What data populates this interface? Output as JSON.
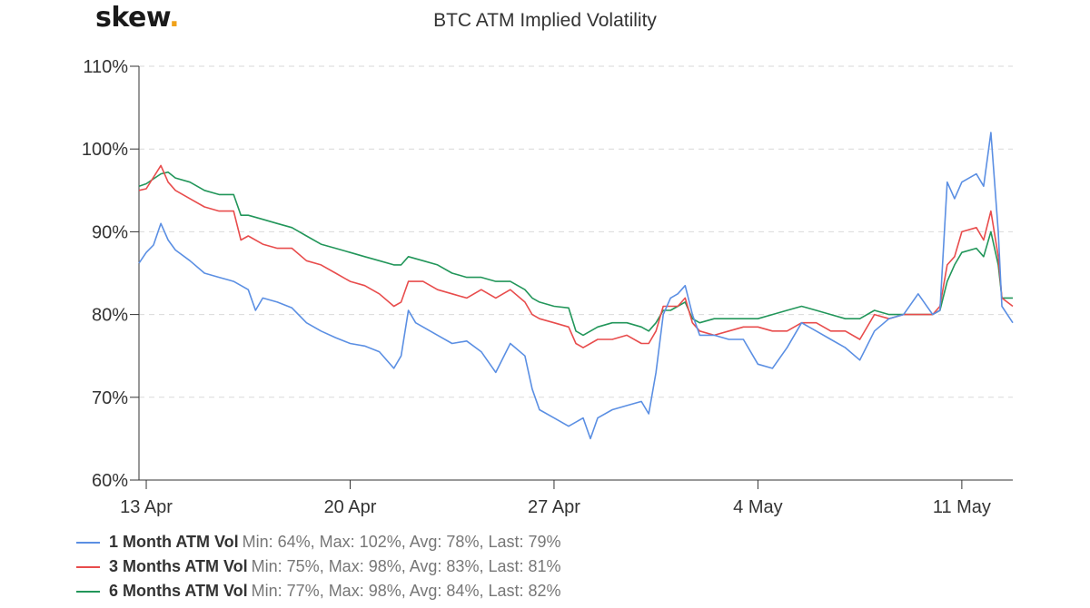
{
  "logo": {
    "text": "skew",
    "dot": "."
  },
  "chart_data": {
    "type": "line",
    "title": "BTC ATM Implied Volatility",
    "xlabel": "",
    "ylabel": "",
    "ylim": [
      60,
      110
    ],
    "y_ticks": [
      60,
      70,
      80,
      90,
      100,
      110
    ],
    "y_tick_labels": [
      "60%",
      "70%",
      "80%",
      "90%",
      "100%",
      "110%"
    ],
    "x_range": [
      "2020-04-12T18:00",
      "2020-05-12T18:00"
    ],
    "x_ticks": [
      "2020-04-13",
      "2020-04-20",
      "2020-04-27",
      "2020-05-04",
      "2020-05-11"
    ],
    "x_tick_labels": [
      "13 Apr",
      "20 Apr",
      "27 Apr",
      "4 May",
      "11 May"
    ],
    "grid": "horizontal dashed",
    "legend_position": "bottom-left",
    "series": [
      {
        "name": "1 Month ATM Vol",
        "color": "#5b8fe3",
        "stats": "Min: 64%, Max: 102%, Avg: 78%, Last: 79%",
        "points": [
          [
            "2020-04-12T18:00",
            86.2
          ],
          [
            "2020-04-13T00:00",
            87.5
          ],
          [
            "2020-04-13T06:00",
            88.4
          ],
          [
            "2020-04-13T12:00",
            91.0
          ],
          [
            "2020-04-13T18:00",
            89.0
          ],
          [
            "2020-04-14T00:00",
            87.8
          ],
          [
            "2020-04-14T12:00",
            86.5
          ],
          [
            "2020-04-15T00:00",
            85.0
          ],
          [
            "2020-04-15T12:00",
            84.5
          ],
          [
            "2020-04-16T00:00",
            84.0
          ],
          [
            "2020-04-16T12:00",
            83.0
          ],
          [
            "2020-04-16T18:00",
            80.5
          ],
          [
            "2020-04-17T00:00",
            82.0
          ],
          [
            "2020-04-17T12:00",
            81.5
          ],
          [
            "2020-04-18T00:00",
            80.8
          ],
          [
            "2020-04-18T12:00",
            79.0
          ],
          [
            "2020-04-19T00:00",
            78.0
          ],
          [
            "2020-04-19T12:00",
            77.2
          ],
          [
            "2020-04-20T00:00",
            76.5
          ],
          [
            "2020-04-20T12:00",
            76.2
          ],
          [
            "2020-04-21T00:00",
            75.5
          ],
          [
            "2020-04-21T12:00",
            73.5
          ],
          [
            "2020-04-21T18:00",
            75.0
          ],
          [
            "2020-04-22T00:00",
            80.5
          ],
          [
            "2020-04-22T06:00",
            79.0
          ],
          [
            "2020-04-22T12:00",
            78.5
          ],
          [
            "2020-04-23T00:00",
            77.5
          ],
          [
            "2020-04-23T12:00",
            76.5
          ],
          [
            "2020-04-24T00:00",
            76.8
          ],
          [
            "2020-04-24T12:00",
            75.5
          ],
          [
            "2020-04-25T00:00",
            73.0
          ],
          [
            "2020-04-25T12:00",
            76.5
          ],
          [
            "2020-04-26T00:00",
            75.0
          ],
          [
            "2020-04-26T06:00",
            71.0
          ],
          [
            "2020-04-26T12:00",
            68.5
          ],
          [
            "2020-04-27T00:00",
            67.5
          ],
          [
            "2020-04-27T12:00",
            66.5
          ],
          [
            "2020-04-28T00:00",
            67.5
          ],
          [
            "2020-04-28T06:00",
            65.0
          ],
          [
            "2020-04-28T12:00",
            67.5
          ],
          [
            "2020-04-29T00:00",
            68.5
          ],
          [
            "2020-04-29T12:00",
            69.0
          ],
          [
            "2020-04-30T00:00",
            69.5
          ],
          [
            "2020-04-30T06:00",
            68.0
          ],
          [
            "2020-04-30T12:00",
            73.0
          ],
          [
            "2020-04-30T18:00",
            80.0
          ],
          [
            "2020-05-01T00:00",
            82.0
          ],
          [
            "2020-05-01T06:00",
            82.5
          ],
          [
            "2020-05-01T12:00",
            83.5
          ],
          [
            "2020-05-01T18:00",
            80.0
          ],
          [
            "2020-05-02T00:00",
            77.5
          ],
          [
            "2020-05-02T12:00",
            77.5
          ],
          [
            "2020-05-03T00:00",
            77.0
          ],
          [
            "2020-05-03T12:00",
            77.0
          ],
          [
            "2020-05-04T00:00",
            74.0
          ],
          [
            "2020-05-04T12:00",
            73.5
          ],
          [
            "2020-05-05T00:00",
            76.0
          ],
          [
            "2020-05-05T12:00",
            79.0
          ],
          [
            "2020-05-06T00:00",
            78.0
          ],
          [
            "2020-05-06T12:00",
            77.0
          ],
          [
            "2020-05-07T00:00",
            76.0
          ],
          [
            "2020-05-07T12:00",
            74.5
          ],
          [
            "2020-05-08T00:00",
            78.0
          ],
          [
            "2020-05-08T12:00",
            79.5
          ],
          [
            "2020-05-09T00:00",
            80.0
          ],
          [
            "2020-05-09T12:00",
            82.5
          ],
          [
            "2020-05-10T00:00",
            80.0
          ],
          [
            "2020-05-10T06:00",
            80.5
          ],
          [
            "2020-05-10T12:00",
            96.0
          ],
          [
            "2020-05-10T18:00",
            94.0
          ],
          [
            "2020-05-11T00:00",
            96.0
          ],
          [
            "2020-05-11T12:00",
            97.0
          ],
          [
            "2020-05-11T18:00",
            95.5
          ],
          [
            "2020-05-12T00:00",
            102.0
          ],
          [
            "2020-05-12T06:00",
            90.0
          ],
          [
            "2020-05-12T09:00",
            81.0
          ],
          [
            "2020-05-12T18:00",
            79.0
          ]
        ]
      },
      {
        "name": "3 Months ATM Vol",
        "color": "#e84c4c",
        "stats": "Min: 75%, Max: 98%, Avg: 83%, Last: 81%",
        "points": [
          [
            "2020-04-12T18:00",
            95.0
          ],
          [
            "2020-04-13T00:00",
            95.2
          ],
          [
            "2020-04-13T12:00",
            98.0
          ],
          [
            "2020-04-13T18:00",
            96.0
          ],
          [
            "2020-04-14T00:00",
            95.0
          ],
          [
            "2020-04-14T12:00",
            94.0
          ],
          [
            "2020-04-15T00:00",
            93.0
          ],
          [
            "2020-04-15T12:00",
            92.5
          ],
          [
            "2020-04-16T00:00",
            92.5
          ],
          [
            "2020-04-16T06:00",
            89.0
          ],
          [
            "2020-04-16T12:00",
            89.5
          ],
          [
            "2020-04-17T00:00",
            88.5
          ],
          [
            "2020-04-17T12:00",
            88.0
          ],
          [
            "2020-04-18T00:00",
            88.0
          ],
          [
            "2020-04-18T12:00",
            86.5
          ],
          [
            "2020-04-19T00:00",
            86.0
          ],
          [
            "2020-04-19T12:00",
            85.0
          ],
          [
            "2020-04-20T00:00",
            84.0
          ],
          [
            "2020-04-20T12:00",
            83.5
          ],
          [
            "2020-04-21T00:00",
            82.5
          ],
          [
            "2020-04-21T12:00",
            81.0
          ],
          [
            "2020-04-21T18:00",
            81.5
          ],
          [
            "2020-04-22T00:00",
            84.0
          ],
          [
            "2020-04-22T12:00",
            84.0
          ],
          [
            "2020-04-23T00:00",
            83.0
          ],
          [
            "2020-04-23T12:00",
            82.5
          ],
          [
            "2020-04-24T00:00",
            82.0
          ],
          [
            "2020-04-24T12:00",
            83.0
          ],
          [
            "2020-04-25T00:00",
            82.0
          ],
          [
            "2020-04-25T12:00",
            83.0
          ],
          [
            "2020-04-26T00:00",
            81.5
          ],
          [
            "2020-04-26T06:00",
            80.0
          ],
          [
            "2020-04-26T12:00",
            79.5
          ],
          [
            "2020-04-27T00:00",
            79.0
          ],
          [
            "2020-04-27T12:00",
            78.5
          ],
          [
            "2020-04-27T18:00",
            76.5
          ],
          [
            "2020-04-28T00:00",
            76.0
          ],
          [
            "2020-04-28T12:00",
            77.0
          ],
          [
            "2020-04-29T00:00",
            77.0
          ],
          [
            "2020-04-29T12:00",
            77.5
          ],
          [
            "2020-04-30T00:00",
            76.5
          ],
          [
            "2020-04-30T06:00",
            76.5
          ],
          [
            "2020-04-30T12:00",
            78.0
          ],
          [
            "2020-04-30T18:00",
            81.0
          ],
          [
            "2020-05-01T00:00",
            81.0
          ],
          [
            "2020-05-01T06:00",
            81.0
          ],
          [
            "2020-05-01T12:00",
            82.0
          ],
          [
            "2020-05-01T18:00",
            79.0
          ],
          [
            "2020-05-02T00:00",
            78.0
          ],
          [
            "2020-05-02T12:00",
            77.5
          ],
          [
            "2020-05-03T00:00",
            78.0
          ],
          [
            "2020-05-03T12:00",
            78.5
          ],
          [
            "2020-05-04T00:00",
            78.5
          ],
          [
            "2020-05-04T12:00",
            78.0
          ],
          [
            "2020-05-05T00:00",
            78.0
          ],
          [
            "2020-05-05T12:00",
            79.0
          ],
          [
            "2020-05-06T00:00",
            79.0
          ],
          [
            "2020-05-06T12:00",
            78.0
          ],
          [
            "2020-05-07T00:00",
            78.0
          ],
          [
            "2020-05-07T12:00",
            77.0
          ],
          [
            "2020-05-08T00:00",
            80.0
          ],
          [
            "2020-05-08T12:00",
            79.5
          ],
          [
            "2020-05-09T00:00",
            80.0
          ],
          [
            "2020-05-09T12:00",
            80.0
          ],
          [
            "2020-05-10T00:00",
            80.0
          ],
          [
            "2020-05-10T06:00",
            81.0
          ],
          [
            "2020-05-10T12:00",
            86.0
          ],
          [
            "2020-05-10T18:00",
            87.0
          ],
          [
            "2020-05-11T00:00",
            90.0
          ],
          [
            "2020-05-11T12:00",
            90.5
          ],
          [
            "2020-05-11T18:00",
            89.0
          ],
          [
            "2020-05-12T00:00",
            92.5
          ],
          [
            "2020-05-12T06:00",
            87.0
          ],
          [
            "2020-05-12T09:00",
            82.0
          ],
          [
            "2020-05-12T18:00",
            81.0
          ]
        ]
      },
      {
        "name": "6 Months ATM Vol",
        "color": "#22965a",
        "stats": "Min: 77%, Max: 98%, Avg: 84%, Last: 82%",
        "points": [
          [
            "2020-04-12T18:00",
            95.5
          ],
          [
            "2020-04-13T00:00",
            95.8
          ],
          [
            "2020-04-13T12:00",
            97.0
          ],
          [
            "2020-04-13T18:00",
            97.2
          ],
          [
            "2020-04-14T00:00",
            96.5
          ],
          [
            "2020-04-14T12:00",
            96.0
          ],
          [
            "2020-04-15T00:00",
            95.0
          ],
          [
            "2020-04-15T12:00",
            94.5
          ],
          [
            "2020-04-16T00:00",
            94.5
          ],
          [
            "2020-04-16T06:00",
            92.0
          ],
          [
            "2020-04-16T12:00",
            92.0
          ],
          [
            "2020-04-17T00:00",
            91.5
          ],
          [
            "2020-04-17T12:00",
            91.0
          ],
          [
            "2020-04-18T00:00",
            90.5
          ],
          [
            "2020-04-18T12:00",
            89.5
          ],
          [
            "2020-04-19T00:00",
            88.5
          ],
          [
            "2020-04-19T12:00",
            88.0
          ],
          [
            "2020-04-20T00:00",
            87.5
          ],
          [
            "2020-04-20T12:00",
            87.0
          ],
          [
            "2020-04-21T00:00",
            86.5
          ],
          [
            "2020-04-21T12:00",
            86.0
          ],
          [
            "2020-04-21T18:00",
            86.0
          ],
          [
            "2020-04-22T00:00",
            87.0
          ],
          [
            "2020-04-22T12:00",
            86.5
          ],
          [
            "2020-04-23T00:00",
            86.0
          ],
          [
            "2020-04-23T12:00",
            85.0
          ],
          [
            "2020-04-24T00:00",
            84.5
          ],
          [
            "2020-04-24T12:00",
            84.5
          ],
          [
            "2020-04-25T00:00",
            84.0
          ],
          [
            "2020-04-25T12:00",
            84.0
          ],
          [
            "2020-04-26T00:00",
            83.0
          ],
          [
            "2020-04-26T06:00",
            82.0
          ],
          [
            "2020-04-26T12:00",
            81.5
          ],
          [
            "2020-04-27T00:00",
            81.0
          ],
          [
            "2020-04-27T12:00",
            80.8
          ],
          [
            "2020-04-27T18:00",
            78.0
          ],
          [
            "2020-04-28T00:00",
            77.5
          ],
          [
            "2020-04-28T12:00",
            78.5
          ],
          [
            "2020-04-29T00:00",
            79.0
          ],
          [
            "2020-04-29T12:00",
            79.0
          ],
          [
            "2020-04-30T00:00",
            78.5
          ],
          [
            "2020-04-30T06:00",
            78.0
          ],
          [
            "2020-04-30T12:00",
            79.0
          ],
          [
            "2020-04-30T18:00",
            80.5
          ],
          [
            "2020-05-01T00:00",
            80.5
          ],
          [
            "2020-05-01T06:00",
            81.0
          ],
          [
            "2020-05-01T12:00",
            81.5
          ],
          [
            "2020-05-01T18:00",
            79.5
          ],
          [
            "2020-05-02T00:00",
            79.0
          ],
          [
            "2020-05-02T12:00",
            79.5
          ],
          [
            "2020-05-03T00:00",
            79.5
          ],
          [
            "2020-05-03T12:00",
            79.5
          ],
          [
            "2020-05-04T00:00",
            79.5
          ],
          [
            "2020-05-04T12:00",
            80.0
          ],
          [
            "2020-05-05T00:00",
            80.5
          ],
          [
            "2020-05-05T12:00",
            81.0
          ],
          [
            "2020-05-06T00:00",
            80.5
          ],
          [
            "2020-05-06T12:00",
            80.0
          ],
          [
            "2020-05-07T00:00",
            79.5
          ],
          [
            "2020-05-07T12:00",
            79.5
          ],
          [
            "2020-05-08T00:00",
            80.5
          ],
          [
            "2020-05-08T12:00",
            80.0
          ],
          [
            "2020-05-09T00:00",
            80.0
          ],
          [
            "2020-05-09T12:00",
            80.0
          ],
          [
            "2020-05-10T00:00",
            80.0
          ],
          [
            "2020-05-10T06:00",
            80.5
          ],
          [
            "2020-05-10T12:00",
            84.0
          ],
          [
            "2020-05-10T18:00",
            86.0
          ],
          [
            "2020-05-11T00:00",
            87.5
          ],
          [
            "2020-05-11T12:00",
            88.0
          ],
          [
            "2020-05-11T18:00",
            87.0
          ],
          [
            "2020-05-12T00:00",
            90.0
          ],
          [
            "2020-05-12T06:00",
            86.0
          ],
          [
            "2020-05-12T09:00",
            82.0
          ],
          [
            "2020-05-12T18:00",
            82.0
          ]
        ]
      }
    ]
  }
}
